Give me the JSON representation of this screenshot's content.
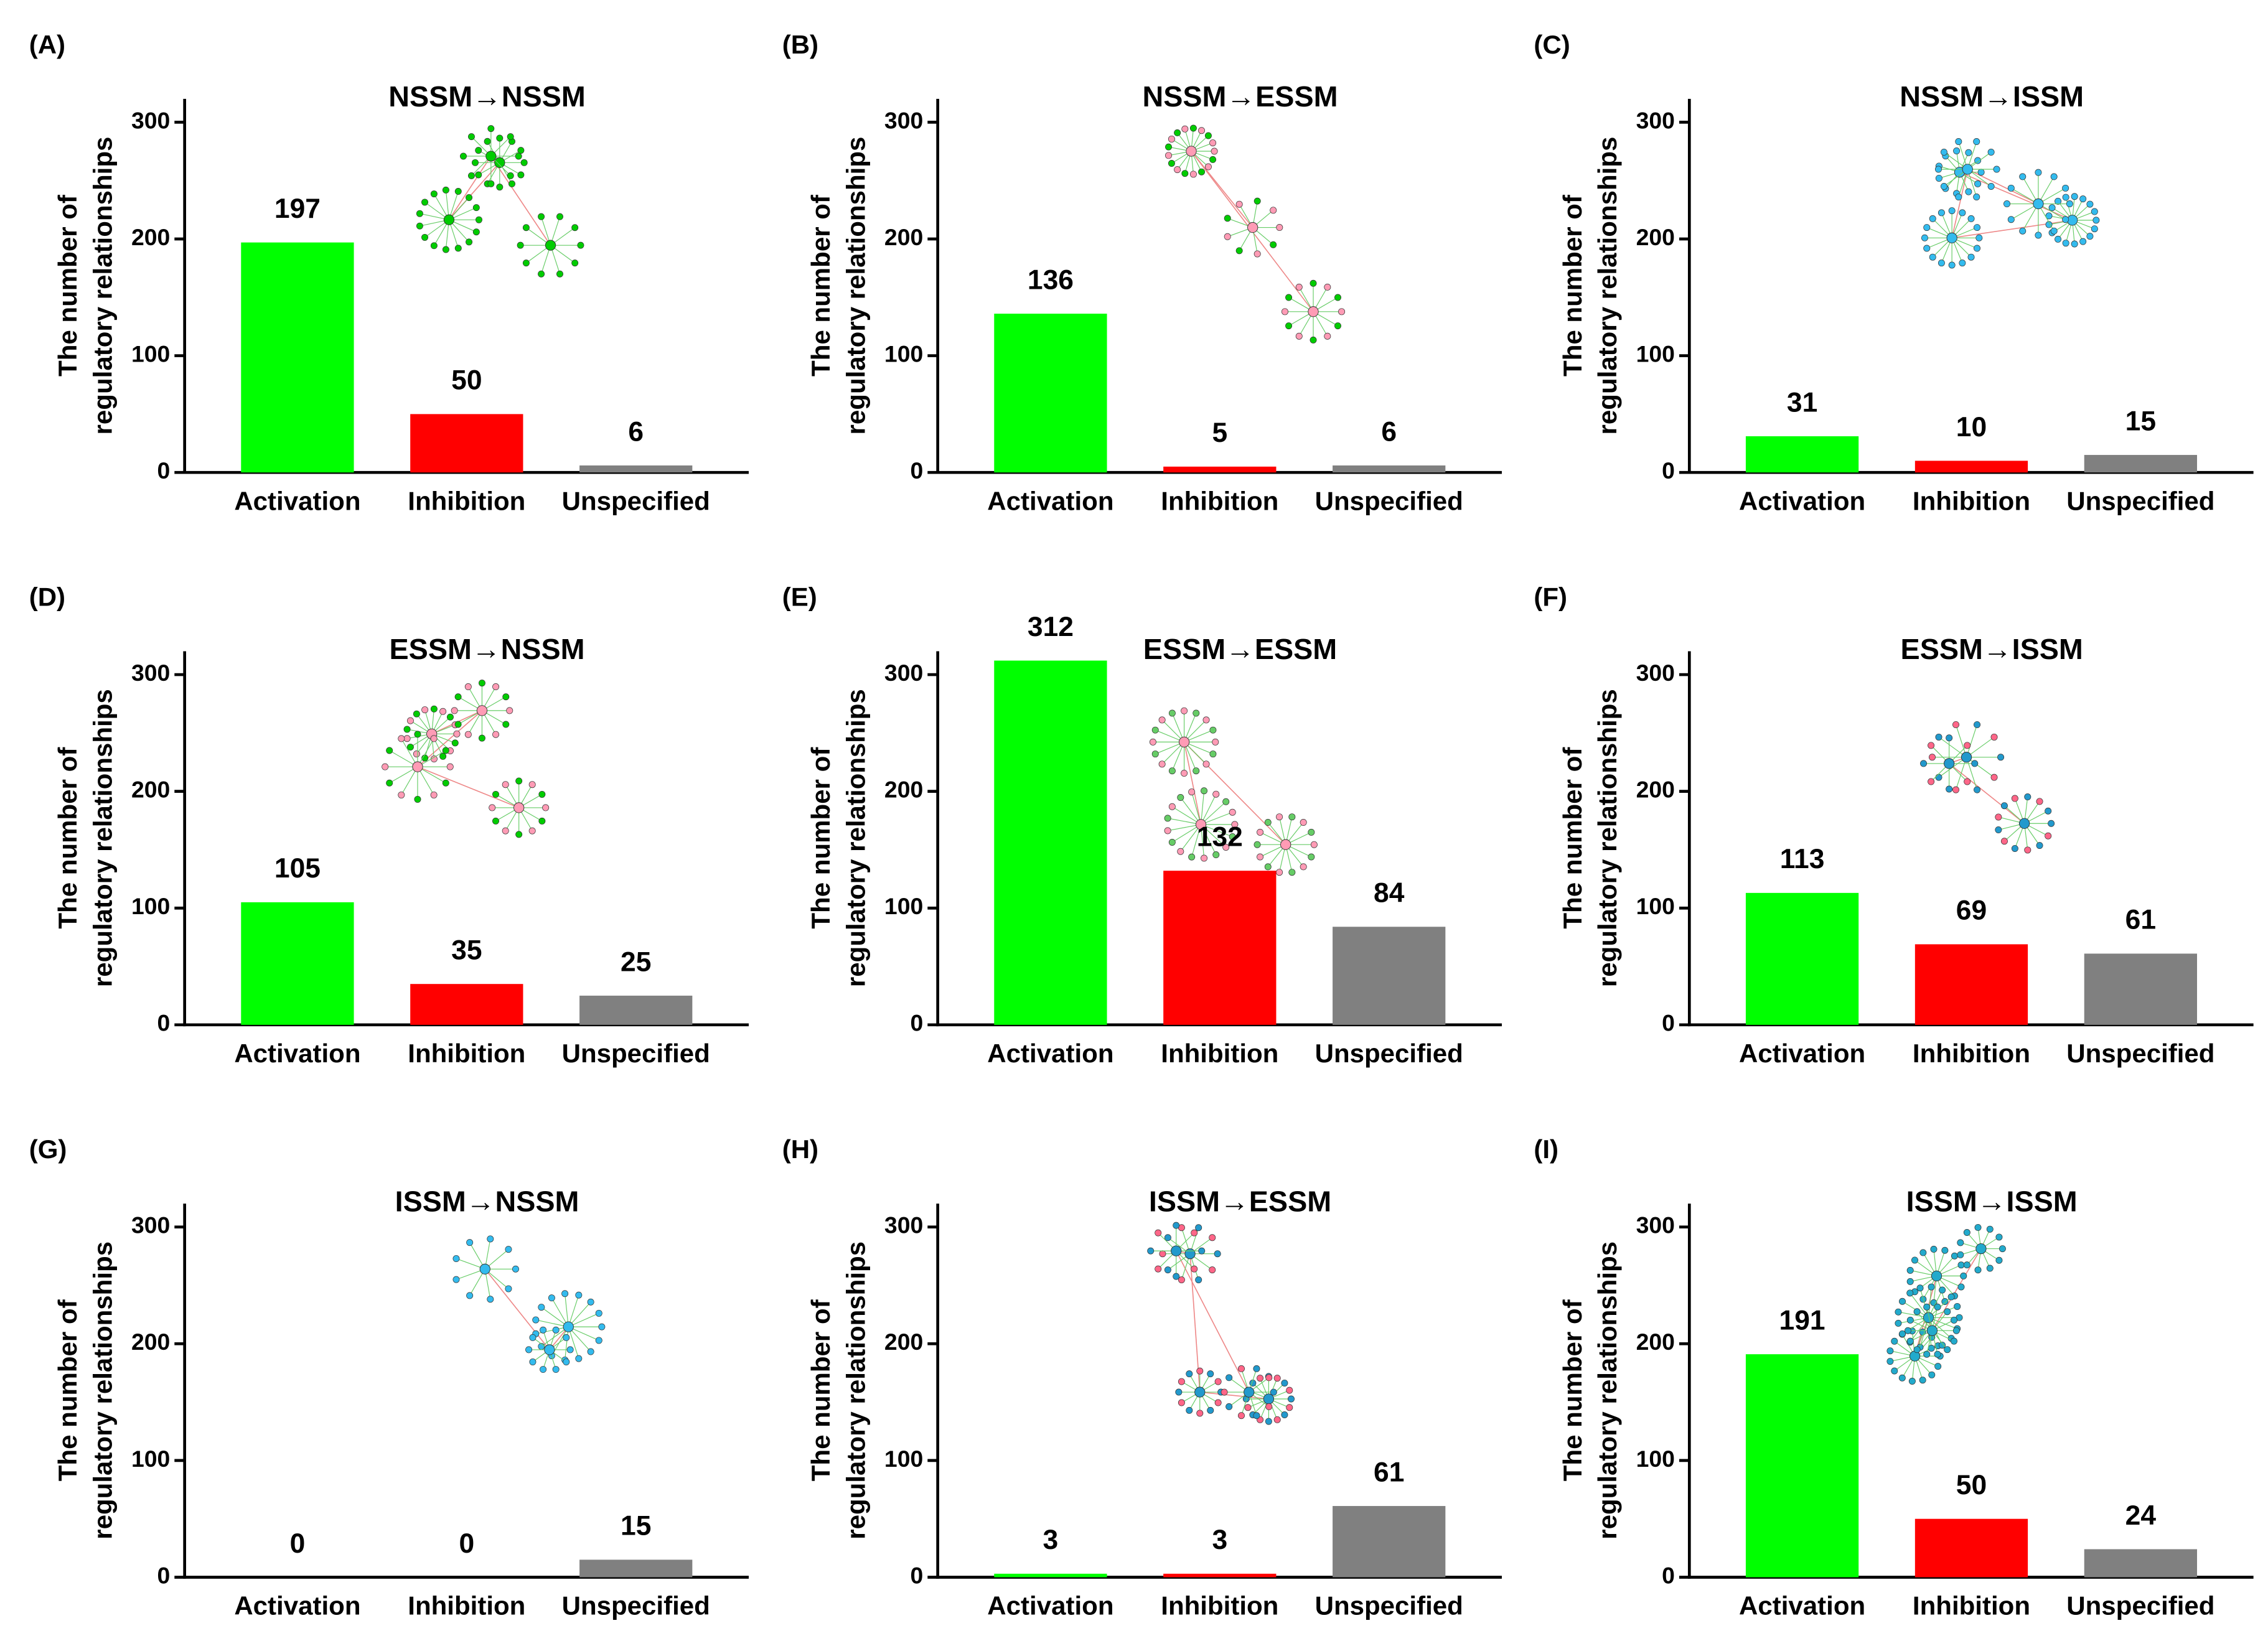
{
  "chart_data": [
    {
      "type": "bar",
      "panel": "(A)",
      "title": "NSSM→NSSM",
      "ylabel": [
        "The number of",
        "regulatory relationships"
      ],
      "categories": [
        "Activation",
        "Inhibition",
        "Unspecified"
      ],
      "values": [
        197,
        50,
        6
      ],
      "colors": [
        "#00ff00",
        "#ff0000",
        "#808080"
      ],
      "ylim": [
        0,
        320
      ],
      "yticks": [
        0,
        100,
        200,
        300
      ]
    },
    {
      "type": "bar",
      "panel": "(B)",
      "title": "NSSM→ESSM",
      "ylabel": [
        "The number of",
        "regulatory relationships"
      ],
      "categories": [
        "Activation",
        "Inhibition",
        "Unspecified"
      ],
      "values": [
        136,
        5,
        6
      ],
      "colors": [
        "#00ff00",
        "#ff0000",
        "#808080"
      ],
      "ylim": [
        0,
        320
      ],
      "yticks": [
        0,
        100,
        200,
        300
      ]
    },
    {
      "type": "bar",
      "panel": "(C)",
      "title": "NSSM→ISSM",
      "ylabel": [
        "The number of",
        "regulatory relationships"
      ],
      "categories": [
        "Activation",
        "Inhibition",
        "Unspecified"
      ],
      "values": [
        31,
        10,
        15
      ],
      "colors": [
        "#00ff00",
        "#ff0000",
        "#808080"
      ],
      "ylim": [
        0,
        320
      ],
      "yticks": [
        0,
        100,
        200,
        300
      ]
    },
    {
      "type": "bar",
      "panel": "(D)",
      "title": "ESSM→NSSM",
      "ylabel": [
        "The number of",
        "regulatory relationships"
      ],
      "categories": [
        "Activation",
        "Inhibition",
        "Unspecified"
      ],
      "values": [
        105,
        35,
        25
      ],
      "colors": [
        "#00ff00",
        "#ff0000",
        "#808080"
      ],
      "ylim": [
        0,
        320
      ],
      "yticks": [
        0,
        100,
        200,
        300
      ]
    },
    {
      "type": "bar",
      "panel": "(E)",
      "title": "ESSM→ESSM",
      "ylabel": [
        "The number of",
        "regulatory relationships"
      ],
      "categories": [
        "Activation",
        "Inhibition",
        "Unspecified"
      ],
      "values": [
        312,
        132,
        84
      ],
      "colors": [
        "#00ff00",
        "#ff0000",
        "#808080"
      ],
      "ylim": [
        0,
        320
      ],
      "yticks": [
        0,
        100,
        200,
        300
      ]
    },
    {
      "type": "bar",
      "panel": "(F)",
      "title": "ESSM→ISSM",
      "ylabel": [
        "The number of",
        "regulatory relationships"
      ],
      "categories": [
        "Activation",
        "Inhibition",
        "Unspecified"
      ],
      "values": [
        113,
        69,
        61
      ],
      "colors": [
        "#00ff00",
        "#ff0000",
        "#808080"
      ],
      "ylim": [
        0,
        320
      ],
      "yticks": [
        0,
        100,
        200,
        300
      ]
    },
    {
      "type": "bar",
      "panel": "(G)",
      "title": "ISSM→NSSM",
      "ylabel": [
        "The number of",
        "regulatory relationships"
      ],
      "categories": [
        "Activation",
        "Inhibition",
        "Unspecified"
      ],
      "values": [
        0,
        0,
        15
      ],
      "colors": [
        "#00ff00",
        "#ff0000",
        "#808080"
      ],
      "ylim": [
        0,
        320
      ],
      "yticks": [
        0,
        100,
        200,
        300
      ]
    },
    {
      "type": "bar",
      "panel": "(H)",
      "title": "ISSM→ESSM",
      "ylabel": [
        "The number of",
        "regulatory relationships"
      ],
      "categories": [
        "Activation",
        "Inhibition",
        "Unspecified"
      ],
      "values": [
        3,
        3,
        61
      ],
      "colors": [
        "#00ff00",
        "#ff0000",
        "#808080"
      ],
      "ylim": [
        0,
        320
      ],
      "yticks": [
        0,
        100,
        200,
        300
      ]
    },
    {
      "type": "bar",
      "panel": "(I)",
      "title": "ISSM→ISSM",
      "ylabel": [
        "The number of",
        "regulatory relationships"
      ],
      "categories": [
        "Activation",
        "Inhibition",
        "Unspecified"
      ],
      "values": [
        191,
        50,
        24
      ],
      "colors": [
        "#00ff00",
        "#ff0000",
        "#808080"
      ],
      "ylim": [
        0,
        320
      ],
      "yticks": [
        0,
        100,
        200,
        300
      ]
    }
  ]
}
